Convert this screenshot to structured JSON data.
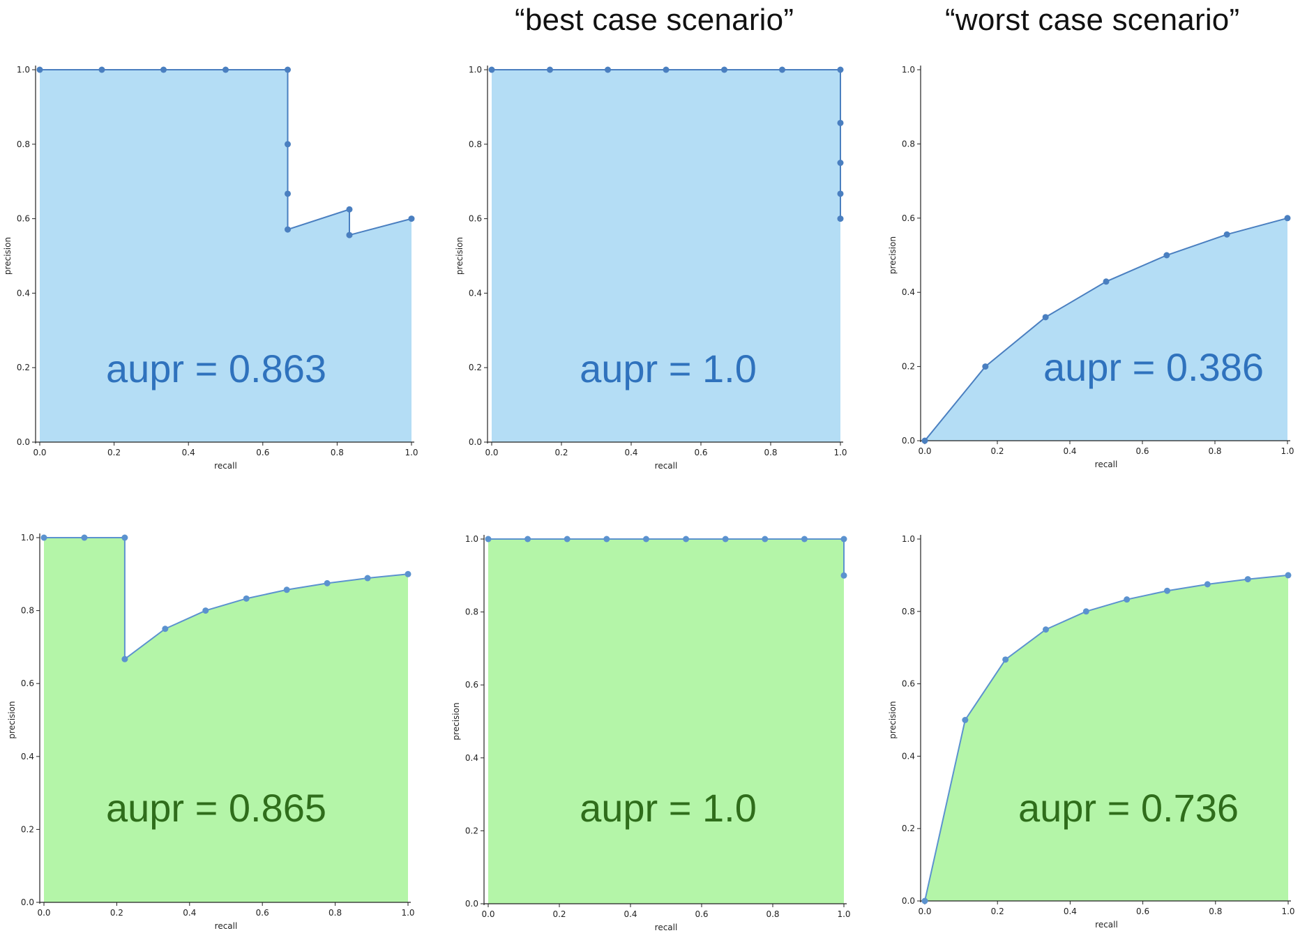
{
  "headings": {
    "best": "“best case scenario”",
    "worst": "“worst case scenario”"
  },
  "colors": {
    "blue_fill": "#b4ddf5",
    "blue_line": "#4a7fc0",
    "blue_text": "#2f72bd",
    "green_fill": "#b4f5a8",
    "green_line": "#5b92cf",
    "green_text": "#2f6d1b"
  },
  "chart_data": [
    {
      "type": "area",
      "xlabel": "recall",
      "ylabel": "precision",
      "xlim": [
        0,
        1
      ],
      "ylim": [
        0,
        1
      ],
      "xticks": [
        "0.0",
        "0.2",
        "0.4",
        "0.6",
        "0.8",
        "1.0"
      ],
      "yticks": [
        "0.0",
        "0.2",
        "0.4",
        "0.6",
        "0.8",
        "1.0"
      ],
      "annotation": "aupr = 0.863",
      "theme": "blue",
      "x": [
        0,
        0.167,
        0.333,
        0.5,
        0.667,
        0.667,
        0.667,
        0.667,
        0.833,
        0.833,
        1.0
      ],
      "y": [
        1.0,
        1.0,
        1.0,
        1.0,
        1.0,
        0.8,
        0.667,
        0.571,
        0.625,
        0.556,
        0.6
      ]
    },
    {
      "type": "area",
      "xlabel": "recall",
      "ylabel": "precision",
      "xlim": [
        0,
        1
      ],
      "ylim": [
        0,
        1
      ],
      "xticks": [
        "0.0",
        "0.2",
        "0.4",
        "0.6",
        "0.8",
        "1.0"
      ],
      "yticks": [
        "0.0",
        "0.2",
        "0.4",
        "0.6",
        "0.8",
        "1.0"
      ],
      "annotation": "aupr = 1.0",
      "theme": "blue",
      "x": [
        0,
        0.167,
        0.333,
        0.5,
        0.667,
        0.833,
        1.0,
        1.0,
        1.0,
        1.0,
        1.0
      ],
      "y": [
        1.0,
        1.0,
        1.0,
        1.0,
        1.0,
        1.0,
        1.0,
        0.857,
        0.75,
        0.667,
        0.6
      ]
    },
    {
      "type": "area",
      "xlabel": "recall",
      "ylabel": "precision",
      "xlim": [
        0,
        1
      ],
      "ylim": [
        0,
        1
      ],
      "xticks": [
        "0.0",
        "0.2",
        "0.4",
        "0.6",
        "0.8",
        "1.0"
      ],
      "yticks": [
        "0.0",
        "0.2",
        "0.4",
        "0.6",
        "0.8",
        "1.0"
      ],
      "annotation": "aupr = 0.386",
      "theme": "blue",
      "x": [
        0,
        0.167,
        0.333,
        0.5,
        0.667,
        0.833,
        1.0
      ],
      "y": [
        0.0,
        0.2,
        0.333,
        0.429,
        0.5,
        0.556,
        0.6
      ]
    },
    {
      "type": "area",
      "xlabel": "recall",
      "ylabel": "precision",
      "xlim": [
        0,
        1
      ],
      "ylim": [
        0,
        1
      ],
      "xticks": [
        "0.0",
        "0.2",
        "0.4",
        "0.6",
        "0.8",
        "1.0"
      ],
      "yticks": [
        "0.0",
        "0.2",
        "0.4",
        "0.6",
        "0.8",
        "1.0"
      ],
      "annotation": "aupr = 0.865",
      "theme": "green",
      "x": [
        0,
        0.111,
        0.222,
        0.222,
        0.333,
        0.444,
        0.556,
        0.667,
        0.778,
        0.889,
        1.0
      ],
      "y": [
        1.0,
        1.0,
        1.0,
        0.667,
        0.75,
        0.8,
        0.833,
        0.857,
        0.875,
        0.889,
        0.9
      ]
    },
    {
      "type": "area",
      "xlabel": "recall",
      "ylabel": "precision",
      "xlim": [
        0,
        1
      ],
      "ylim": [
        0,
        1
      ],
      "xticks": [
        "0.0",
        "0.2",
        "0.4",
        "0.6",
        "0.8",
        "1.0"
      ],
      "yticks": [
        "0.0",
        "0.2",
        "0.4",
        "0.6",
        "0.8",
        "1.0"
      ],
      "annotation": "aupr = 1.0",
      "theme": "green",
      "x": [
        0,
        0.111,
        0.222,
        0.333,
        0.444,
        0.556,
        0.667,
        0.778,
        0.889,
        1.0,
        1.0
      ],
      "y": [
        1.0,
        1.0,
        1.0,
        1.0,
        1.0,
        1.0,
        1.0,
        1.0,
        1.0,
        1.0,
        0.9
      ]
    },
    {
      "type": "area",
      "xlabel": "recall",
      "ylabel": "precision",
      "xlim": [
        0,
        1
      ],
      "ylim": [
        0,
        1
      ],
      "xticks": [
        "0.0",
        "0.2",
        "0.4",
        "0.6",
        "0.8",
        "1.0"
      ],
      "yticks": [
        "0.0",
        "0.2",
        "0.4",
        "0.6",
        "0.8",
        "1.0"
      ],
      "annotation": "aupr = 0.736",
      "theme": "green",
      "x": [
        0,
        0.111,
        0.222,
        0.333,
        0.444,
        0.556,
        0.667,
        0.778,
        0.889,
        1.0
      ],
      "y": [
        0.0,
        0.5,
        0.667,
        0.75,
        0.8,
        0.833,
        0.857,
        0.875,
        0.889,
        0.9
      ]
    }
  ]
}
